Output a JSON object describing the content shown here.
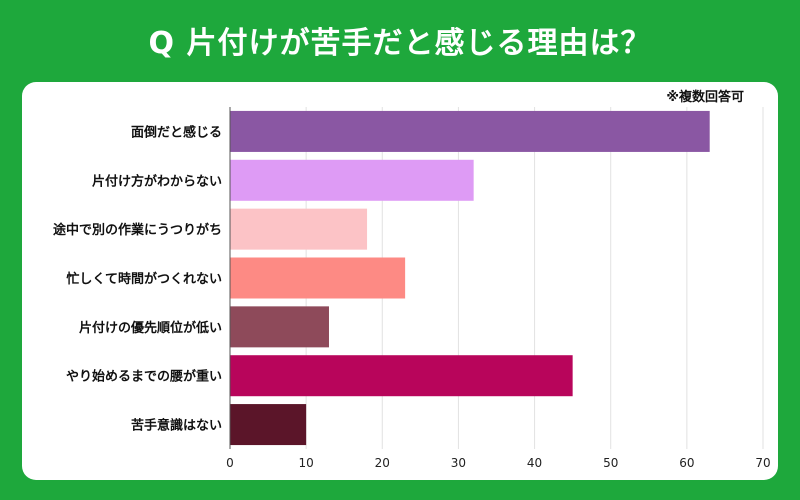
{
  "header": {
    "title": "Q 片付けが苦手だと感じる理由は？"
  },
  "note": "※複数回答可",
  "chart_data": {
    "type": "bar",
    "orientation": "horizontal",
    "categories": [
      "面倒だと感じる",
      "片付け方がわからない",
      "途中で別の作業にうつりがち",
      "忙しくて時間がつくれない",
      "片付けの優先順位が低い",
      "やり始めるまでの腰が重い",
      "苦手意識はない"
    ],
    "values": [
      63,
      32,
      18,
      23,
      13,
      45,
      10
    ],
    "colors": [
      "#8a57a3",
      "#de9bf5",
      "#fcc3c6",
      "#fd8a84",
      "#8e4a5a",
      "#b8055b",
      "#5b1529"
    ],
    "xlim": [
      0,
      70
    ],
    "xticks": [
      0,
      10,
      20,
      30,
      40,
      50,
      60,
      70
    ],
    "grid": true
  }
}
